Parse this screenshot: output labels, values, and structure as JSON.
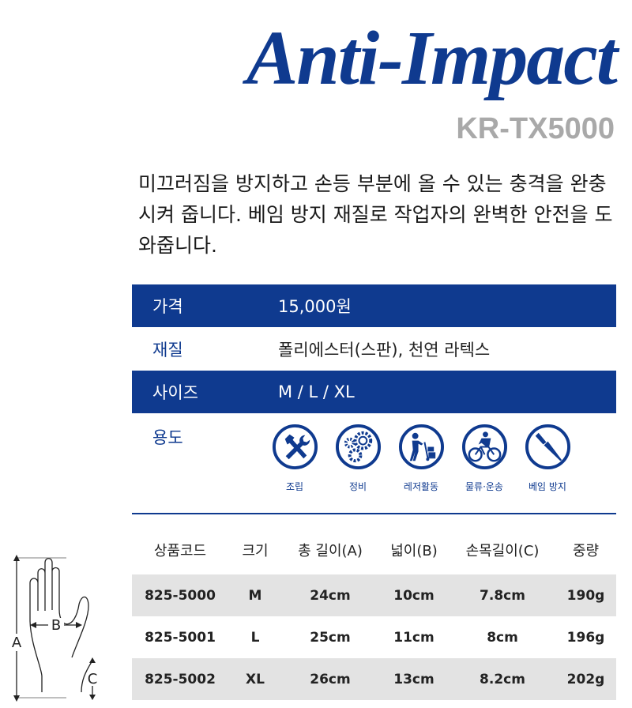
{
  "header": {
    "title": "Anti-Impact",
    "model": "KR-TX5000"
  },
  "description": "미끄러짐을 방지하고 손등 부분에 올 수 있는 충격을 완충시켜 줍니다. 베임 방지 재질로 작업자의 완벽한 안전을 도와줍니다.",
  "specs": [
    {
      "label": "가격",
      "value": "15,000원"
    },
    {
      "label": "재질",
      "value": "폴리에스터(스판), 천연 라텍스"
    },
    {
      "label": "사이즈",
      "value": "M / L / XL"
    }
  ],
  "usage": {
    "label": "용도",
    "items": [
      {
        "icon": "tools-icon",
        "label": "조립"
      },
      {
        "icon": "gears-icon",
        "label": "정비"
      },
      {
        "icon": "hand-truck-icon",
        "label": "레저활동"
      },
      {
        "icon": "cyclist-icon",
        "label": "물류·운송"
      },
      {
        "icon": "knife-icon",
        "label": "베임 방지"
      }
    ]
  },
  "table": {
    "headers": [
      "상품코드",
      "크기",
      "총 길이(A)",
      "넓이(B)",
      "손목길이(C)",
      "중량"
    ],
    "rows": [
      [
        "825-5000",
        "M",
        "24cm",
        "10cm",
        "7.8cm",
        "190g"
      ],
      [
        "825-5001",
        "L",
        "25cm",
        "11cm",
        "8cm",
        "196g"
      ],
      [
        "825-5002",
        "XL",
        "26cm",
        "13cm",
        "8.2cm",
        "202g"
      ]
    ]
  },
  "diagram": {
    "labels": [
      "A",
      "B",
      "C"
    ]
  },
  "colors": {
    "brand": "#0f3a8f",
    "row_gray": "#e3e3e3",
    "model_gray": "#a9a9a9"
  }
}
